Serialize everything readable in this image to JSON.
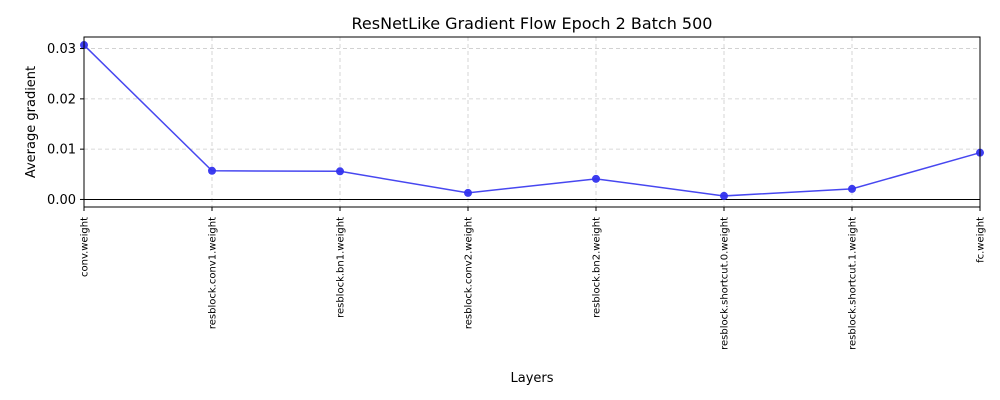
{
  "chart_data": {
    "type": "line",
    "title": "ResNetLike Gradient Flow Epoch 2 Batch 500",
    "xlabel": "Layers",
    "ylabel": "Average gradient",
    "categories": [
      "conv.weight",
      "resblock.conv1.weight",
      "resblock.bn1.weight",
      "resblock.conv2.weight",
      "resblock.bn2.weight",
      "resblock.shortcut.0.weight",
      "resblock.shortcut.1.weight",
      "fc.weight"
    ],
    "series": [
      {
        "values": [
          0.0307,
          0.0057,
          0.0056,
          0.0013,
          0.0041,
          0.0007,
          0.0021,
          0.0093
        ],
        "color": "#3333ee"
      }
    ],
    "yticks": [
      0.0,
      0.01,
      0.02,
      0.03
    ],
    "ytick_labels": [
      "0.00",
      "0.01",
      "0.02",
      "0.03"
    ],
    "ylim": [
      -0.0015,
      0.0323
    ],
    "grid": true,
    "hline_at": 0.0
  }
}
